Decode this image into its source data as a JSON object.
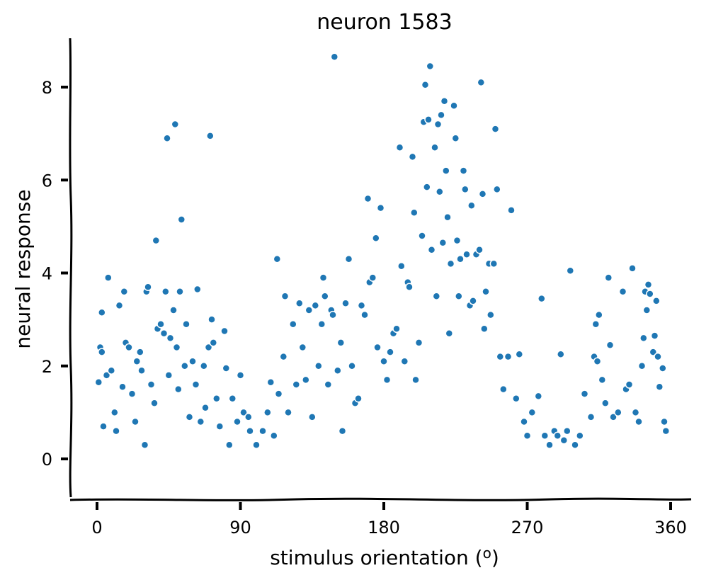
{
  "chart_data": {
    "type": "scatter",
    "title": "neuron 1583",
    "xlabel": "stimulus orientation (o)",
    "ylabel": "neural response",
    "xlim": [
      -8,
      378
    ],
    "ylim": [
      -0.8,
      9.1
    ],
    "xticks": [
      0,
      90,
      180,
      270,
      360
    ],
    "yticks": [
      0,
      2,
      4,
      6,
      8
    ],
    "grid": false,
    "legend": "none",
    "series": [
      {
        "color": "#1f77b4",
        "points": [
          [
            1,
            1.65
          ],
          [
            2,
            2.4
          ],
          [
            3,
            3.15
          ],
          [
            3,
            2.3
          ],
          [
            4,
            0.7
          ],
          [
            6,
            1.8
          ],
          [
            7,
            3.9
          ],
          [
            9,
            1.9
          ],
          [
            11,
            1.0
          ],
          [
            12,
            0.6
          ],
          [
            14,
            3.3
          ],
          [
            16,
            1.55
          ],
          [
            17,
            3.6
          ],
          [
            18,
            2.5
          ],
          [
            20,
            2.4
          ],
          [
            22,
            1.4
          ],
          [
            24,
            0.8
          ],
          [
            25,
            2.1
          ],
          [
            27,
            2.3
          ],
          [
            28,
            1.9
          ],
          [
            30,
            0.3
          ],
          [
            31,
            3.6
          ],
          [
            32,
            3.7
          ],
          [
            34,
            1.6
          ],
          [
            36,
            1.2
          ],
          [
            37,
            4.7
          ],
          [
            38,
            2.8
          ],
          [
            40,
            2.9
          ],
          [
            42,
            2.7
          ],
          [
            43,
            3.6
          ],
          [
            44,
            6.9
          ],
          [
            45,
            1.8
          ],
          [
            46,
            2.6
          ],
          [
            48,
            3.2
          ],
          [
            49,
            7.2
          ],
          [
            50,
            2.4
          ],
          [
            51,
            1.5
          ],
          [
            52,
            3.6
          ],
          [
            53,
            5.15
          ],
          [
            55,
            2.0
          ],
          [
            56,
            2.9
          ],
          [
            58,
            0.9
          ],
          [
            60,
            2.1
          ],
          [
            62,
            1.6
          ],
          [
            63,
            3.65
          ],
          [
            65,
            0.8
          ],
          [
            67,
            2.0
          ],
          [
            68,
            1.1
          ],
          [
            70,
            2.4
          ],
          [
            71,
            6.95
          ],
          [
            72,
            3.0
          ],
          [
            73,
            2.5
          ],
          [
            75,
            1.3
          ],
          [
            77,
            0.7
          ],
          [
            80,
            2.75
          ],
          [
            81,
            1.95
          ],
          [
            83,
            0.3
          ],
          [
            85,
            1.3
          ],
          [
            88,
            0.8
          ],
          [
            90,
            1.8
          ],
          [
            92,
            1.0
          ],
          [
            95,
            0.9
          ],
          [
            96,
            0.6
          ],
          [
            100,
            0.3
          ],
          [
            104,
            0.6
          ],
          [
            107,
            1.0
          ],
          [
            109,
            1.65
          ],
          [
            111,
            0.5
          ],
          [
            113,
            4.3
          ],
          [
            114,
            1.4
          ],
          [
            117,
            2.2
          ],
          [
            118,
            3.5
          ],
          [
            120,
            1.0
          ],
          [
            123,
            2.9
          ],
          [
            125,
            1.6
          ],
          [
            127,
            3.35
          ],
          [
            129,
            2.4
          ],
          [
            131,
            1.7
          ],
          [
            133,
            3.2
          ],
          [
            135,
            0.9
          ],
          [
            137,
            3.3
          ],
          [
            139,
            2.0
          ],
          [
            141,
            2.9
          ],
          [
            142,
            3.9
          ],
          [
            143,
            3.5
          ],
          [
            145,
            1.6
          ],
          [
            147,
            3.2
          ],
          [
            148,
            3.1
          ],
          [
            149,
            8.65
          ],
          [
            151,
            1.9
          ],
          [
            153,
            2.5
          ],
          [
            154,
            0.6
          ],
          [
            156,
            3.35
          ],
          [
            158,
            4.3
          ],
          [
            160,
            2.0
          ],
          [
            162,
            1.2
          ],
          [
            164,
            1.3
          ],
          [
            166,
            3.3
          ],
          [
            168,
            3.1
          ],
          [
            170,
            5.6
          ],
          [
            171,
            3.8
          ],
          [
            173,
            3.9
          ],
          [
            175,
            4.75
          ],
          [
            176,
            2.4
          ],
          [
            178,
            5.4
          ],
          [
            180,
            2.1
          ],
          [
            182,
            1.7
          ],
          [
            184,
            2.3
          ],
          [
            186,
            2.7
          ],
          [
            188,
            2.8
          ],
          [
            190,
            6.7
          ],
          [
            191,
            4.15
          ],
          [
            193,
            2.1
          ],
          [
            195,
            3.8
          ],
          [
            196,
            3.7
          ],
          [
            198,
            6.5
          ],
          [
            199,
            5.3
          ],
          [
            200,
            1.7
          ],
          [
            202,
            2.5
          ],
          [
            204,
            4.8
          ],
          [
            205,
            7.25
          ],
          [
            206,
            8.05
          ],
          [
            207,
            5.85
          ],
          [
            208,
            7.3
          ],
          [
            209,
            8.45
          ],
          [
            210,
            4.5
          ],
          [
            212,
            6.7
          ],
          [
            213,
            3.5
          ],
          [
            214,
            7.2
          ],
          [
            215,
            5.75
          ],
          [
            216,
            7.4
          ],
          [
            217,
            4.65
          ],
          [
            218,
            7.7
          ],
          [
            219,
            6.2
          ],
          [
            220,
            5.2
          ],
          [
            221,
            2.7
          ],
          [
            222,
            4.2
          ],
          [
            224,
            7.6
          ],
          [
            225,
            6.9
          ],
          [
            226,
            4.7
          ],
          [
            227,
            3.5
          ],
          [
            228,
            4.3
          ],
          [
            230,
            6.2
          ],
          [
            231,
            5.8
          ],
          [
            232,
            4.4
          ],
          [
            234,
            3.3
          ],
          [
            235,
            5.45
          ],
          [
            236,
            3.4
          ],
          [
            238,
            4.4
          ],
          [
            240,
            4.5
          ],
          [
            241,
            8.1
          ],
          [
            242,
            5.7
          ],
          [
            243,
            2.8
          ],
          [
            244,
            3.6
          ],
          [
            246,
            4.2
          ],
          [
            247,
            3.1
          ],
          [
            249,
            4.2
          ],
          [
            250,
            7.1
          ],
          [
            251,
            5.8
          ],
          [
            253,
            2.2
          ],
          [
            255,
            1.5
          ],
          [
            258,
            2.2
          ],
          [
            260,
            5.35
          ],
          [
            263,
            1.3
          ],
          [
            265,
            2.25
          ],
          [
            268,
            0.8
          ],
          [
            270,
            0.5
          ],
          [
            273,
            1.0
          ],
          [
            277,
            1.35
          ],
          [
            279,
            3.45
          ],
          [
            281,
            0.5
          ],
          [
            284,
            0.3
          ],
          [
            287,
            0.6
          ],
          [
            289,
            0.5
          ],
          [
            291,
            2.25
          ],
          [
            293,
            0.4
          ],
          [
            295,
            0.6
          ],
          [
            297,
            4.05
          ],
          [
            300,
            0.3
          ],
          [
            303,
            0.5
          ],
          [
            306,
            1.4
          ],
          [
            310,
            0.9
          ],
          [
            312,
            2.2
          ],
          [
            313,
            2.9
          ],
          [
            314,
            2.1
          ],
          [
            315,
            3.1
          ],
          [
            317,
            1.7
          ],
          [
            319,
            1.2
          ],
          [
            321,
            3.9
          ],
          [
            322,
            2.45
          ],
          [
            324,
            0.9
          ],
          [
            327,
            1.0
          ],
          [
            330,
            3.6
          ],
          [
            332,
            1.5
          ],
          [
            334,
            1.6
          ],
          [
            336,
            4.1
          ],
          [
            338,
            1.0
          ],
          [
            340,
            0.8
          ],
          [
            342,
            2.0
          ],
          [
            343,
            2.6
          ],
          [
            344,
            3.6
          ],
          [
            345,
            3.2
          ],
          [
            346,
            3.75
          ],
          [
            347,
            3.55
          ],
          [
            349,
            2.3
          ],
          [
            350,
            2.65
          ],
          [
            351,
            3.4
          ],
          [
            352,
            2.2
          ],
          [
            353,
            1.55
          ],
          [
            355,
            1.95
          ],
          [
            356,
            0.8
          ],
          [
            357,
            0.6
          ]
        ]
      }
    ]
  }
}
